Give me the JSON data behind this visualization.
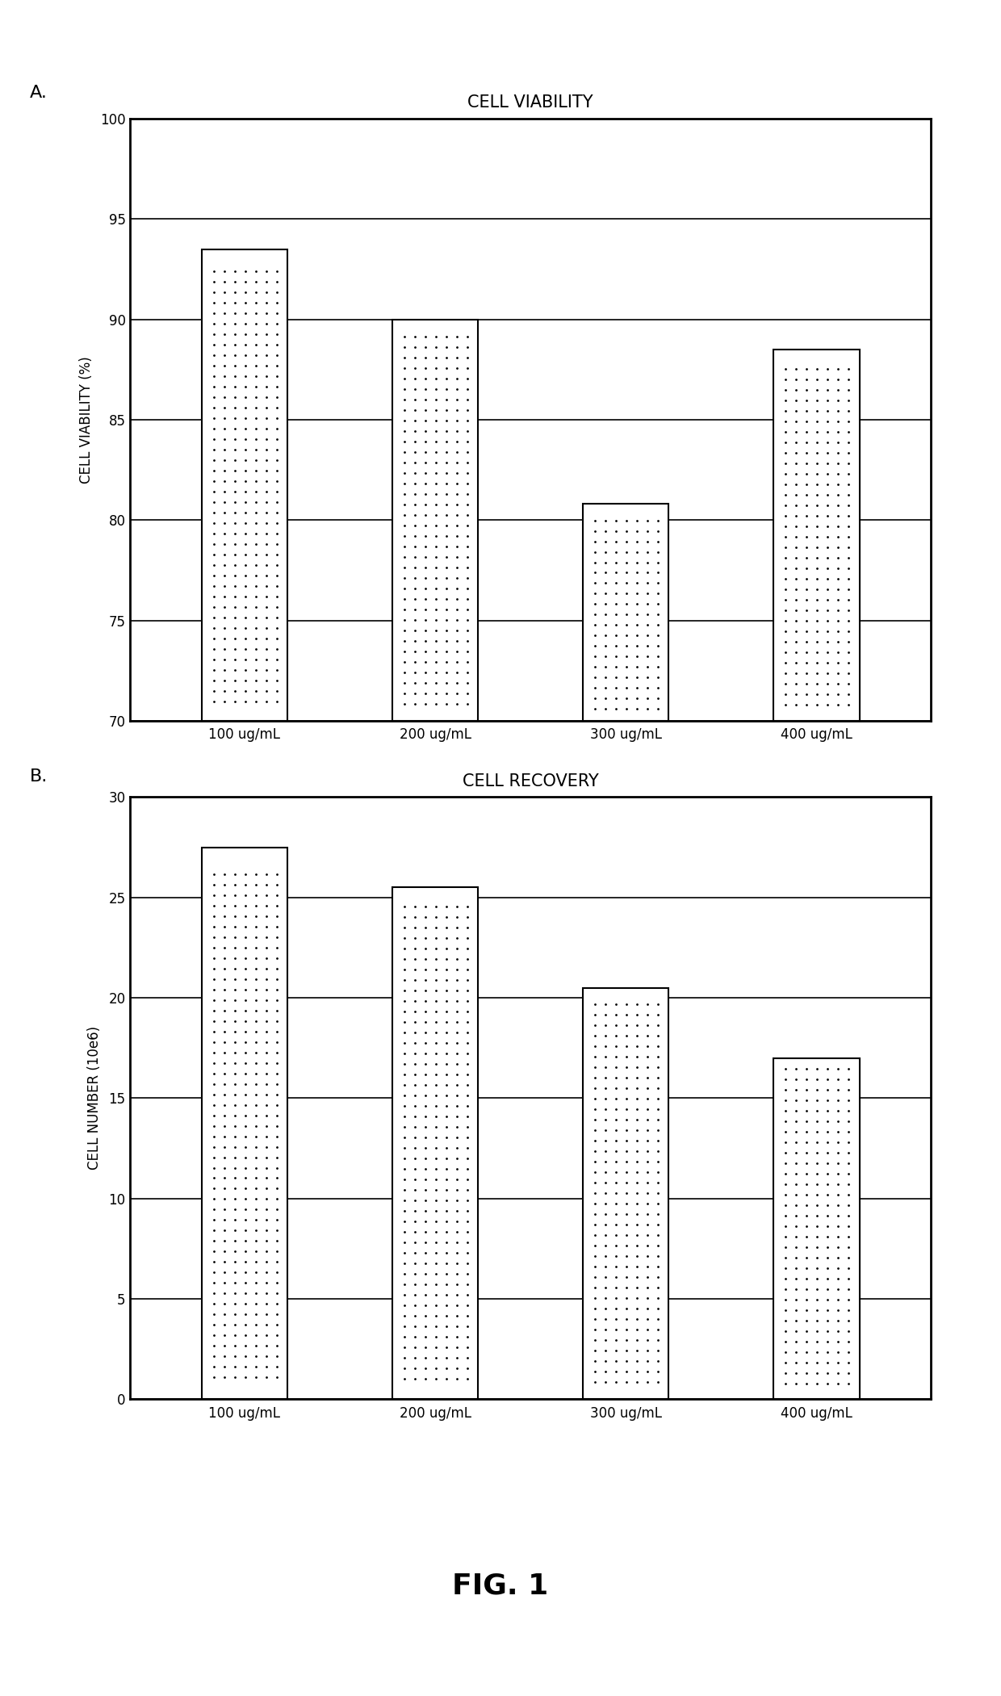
{
  "panel_a": {
    "title": "CELL VIABILITY",
    "categories": [
      "100 ug/mL",
      "200 ug/mL",
      "300 ug/mL",
      "400 ug/mL"
    ],
    "values": [
      93.5,
      90.0,
      80.8,
      88.5
    ],
    "ylabel": "CELL VIABILITY (%)",
    "ylim": [
      70,
      100
    ],
    "yticks": [
      70,
      75,
      80,
      85,
      90,
      95,
      100
    ],
    "panel_label": "A."
  },
  "panel_b": {
    "title": "CELL RECOVERY",
    "categories": [
      "100 ug/mL",
      "200 ug/mL",
      "300 ug/mL",
      "400 ug/mL"
    ],
    "values": [
      27.5,
      25.5,
      20.5,
      17.0
    ],
    "ylabel": "CELL NUMBER (10e6)",
    "ylim": [
      0,
      30
    ],
    "yticks": [
      0,
      5,
      10,
      15,
      20,
      25,
      30
    ],
    "panel_label": "B."
  },
  "fig_label": "FIG. 1",
  "bar_color": "#ffffff",
  "bar_edgecolor": "#000000",
  "background_color": "#ffffff",
  "bar_width": 0.45,
  "title_fontsize": 15,
  "label_fontsize": 12,
  "tick_fontsize": 12,
  "panel_label_fontsize": 16,
  "fig_label_fontsize": 26
}
